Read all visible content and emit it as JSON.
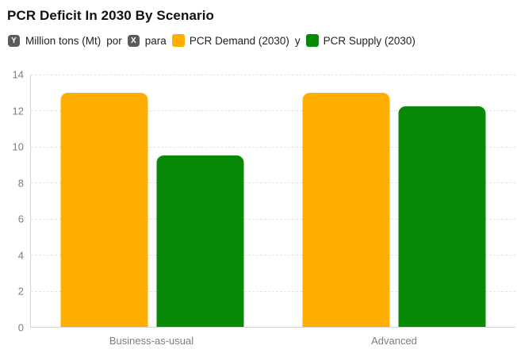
{
  "title": "PCR Deficit In 2030 By Scenario",
  "legend": {
    "y_badge": "Y",
    "y_axis_label": "Million tons (Mt)",
    "por": "por",
    "x_badge": "X",
    "x_axis_label": "para",
    "series1_label": "PCR Demand (2030)",
    "joiner": "y",
    "series2_label": "PCR Supply (2030)"
  },
  "colors": {
    "demand": "#FFAE00",
    "supply": "#088A08",
    "badge_bg": "#5B5B5B",
    "axis_line": "#D4D4D4",
    "gridline": "#E4E4E4",
    "tick_text": "#7D7D7D"
  },
  "chart_data": {
    "type": "bar",
    "title": "PCR Deficit In 2030 By Scenario",
    "categories": [
      "Business-as-usual",
      "Advanced"
    ],
    "series": [
      {
        "name": "PCR Demand (2030)",
        "color": "#FFAE00",
        "values": [
          13,
          13
        ]
      },
      {
        "name": "PCR Supply (2030)",
        "color": "#088A08",
        "values": [
          9.5,
          12.25
        ]
      }
    ],
    "ylabel": "Million tons (Mt)",
    "xlabel": "para",
    "ylim": [
      0,
      14
    ],
    "yticks": [
      0,
      2,
      4,
      6,
      8,
      10,
      12,
      14
    ],
    "grid": "horizontal-dashed",
    "legend_position": "top"
  }
}
